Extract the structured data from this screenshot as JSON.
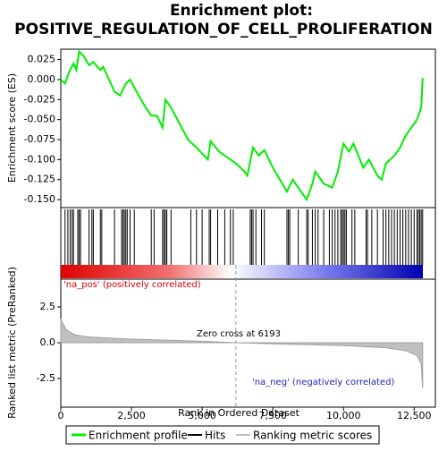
{
  "chart_data": [
    {
      "type": "line",
      "title": "Enrichment plot:",
      "subtitle": "POSITIVE_REGULATION_OF_CELL_PROLIFERATION",
      "y_label": "Enrichment score (ES)",
      "xlim": [
        0,
        13250
      ],
      "ylim": [
        -0.16,
        0.038
      ],
      "yticks": [
        0.025,
        {
          "value": 0,
          "label": "0.000"
        },
        -0.025,
        {
          "value": -0.05,
          "label": "-0.050"
        },
        -0.075,
        {
          "value": -0.1,
          "label": "-0.100"
        },
        -0.125,
        {
          "value": -0.15,
          "label": "-0.150"
        }
      ],
      "x": [
        0,
        150,
        300,
        450,
        550,
        650,
        800,
        1000,
        1150,
        1400,
        1500,
        1900,
        2100,
        2300,
        2450,
        2600,
        3000,
        3200,
        3400,
        3600,
        3700,
        3900,
        4500,
        4800,
        5200,
        5300,
        5600,
        6000,
        6200,
        6500,
        6600,
        6800,
        7000,
        7200,
        7500,
        8000,
        8200,
        8500,
        8700,
        8900,
        9000,
        9300,
        9600,
        9800,
        10000,
        10200,
        10350,
        10700,
        10900,
        11200,
        11350,
        11500,
        11800,
        12000,
        12200,
        12400,
        12600,
        12750,
        12800
      ],
      "series": [
        {
          "name": "Enrichment profile",
          "color": "#00ee00",
          "values": [
            0,
            -0.005,
            0.01,
            0.02,
            0.012,
            0.035,
            0.03,
            0.018,
            0.022,
            0.012,
            0.016,
            -0.015,
            -0.02,
            -0.005,
            0,
            -0.01,
            -0.035,
            -0.045,
            -0.045,
            -0.06,
            -0.025,
            -0.035,
            -0.075,
            -0.085,
            -0.1,
            -0.077,
            -0.09,
            -0.1,
            -0.105,
            -0.115,
            -0.12,
            -0.085,
            -0.095,
            -0.088,
            -0.11,
            -0.14,
            -0.125,
            -0.14,
            -0.15,
            -0.13,
            -0.115,
            -0.13,
            -0.135,
            -0.115,
            -0.08,
            -0.09,
            -0.08,
            -0.11,
            -0.1,
            -0.12,
            -0.125,
            -0.105,
            -0.095,
            -0.085,
            -0.07,
            -0.06,
            -0.05,
            -0.035,
            0.002
          ]
        }
      ]
    },
    {
      "type": "hits",
      "xlim": [
        0,
        13250
      ],
      "series": [
        {
          "name": "Hits",
          "color": "#000000",
          "values": [
            150,
            250,
            330,
            400,
            450,
            600,
            650,
            700,
            1000,
            1100,
            1150,
            1400,
            1450,
            1900,
            2150,
            2200,
            2250,
            2300,
            2350,
            2450,
            2600,
            3200,
            3300,
            3600,
            3650,
            3700,
            3750,
            3900,
            4600,
            4800,
            5000,
            5250,
            5300,
            5550,
            5800,
            6000,
            6100,
            6700,
            6750,
            6800,
            6900,
            7100,
            7200,
            8000,
            8050,
            8100,
            8400,
            8700,
            8750,
            8900,
            9000,
            9100,
            9300,
            9500,
            9600,
            9700,
            9800,
            9900,
            9950,
            10000,
            10050,
            10100,
            10300,
            10400,
            10800,
            10850,
            11000,
            11200,
            11400,
            11500,
            11600,
            11700,
            11800,
            11900,
            12000,
            12100,
            12200,
            12300,
            12400,
            12500,
            12600,
            12650,
            12700,
            12750,
            12800
          ]
        }
      ]
    },
    {
      "type": "area",
      "x_label": "Rank in Ordered Dataset",
      "y_label": "Ranked list metric (PreRanked)",
      "xlim": [
        0,
        13250
      ],
      "ylim": [
        -4.5,
        4.44
      ],
      "xticks": [
        0,
        {
          "value": 2500,
          "label": "2,500"
        },
        {
          "value": 5000,
          "label": "5,000"
        },
        {
          "value": 7500,
          "label": "7,500"
        },
        {
          "value": 10000,
          "label": "10,000"
        },
        {
          "value": 12500,
          "label": "12,500"
        }
      ],
      "yticks": [
        2.5,
        {
          "value": 0,
          "label": "0.0"
        },
        -2.5
      ],
      "x": [
        0,
        200,
        500,
        1000,
        2500,
        5000,
        6193,
        8000,
        10000,
        11500,
        12200,
        12600,
        12750,
        12800
      ],
      "series": [
        {
          "name": "Ranking metric scores",
          "color": "#c0c0c0",
          "values": [
            1.6,
            0.9,
            0.55,
            0.4,
            0.25,
            0.1,
            0,
            -0.1,
            -0.2,
            -0.35,
            -0.55,
            -0.9,
            -1.5,
            -3.2
          ]
        }
      ],
      "zero_cross": 6193,
      "annotations": [
        "'na_pos' (positively correlated)",
        "Zero cross at 6193",
        "'na_neg' (negatively correlated)"
      ]
    }
  ]
}
